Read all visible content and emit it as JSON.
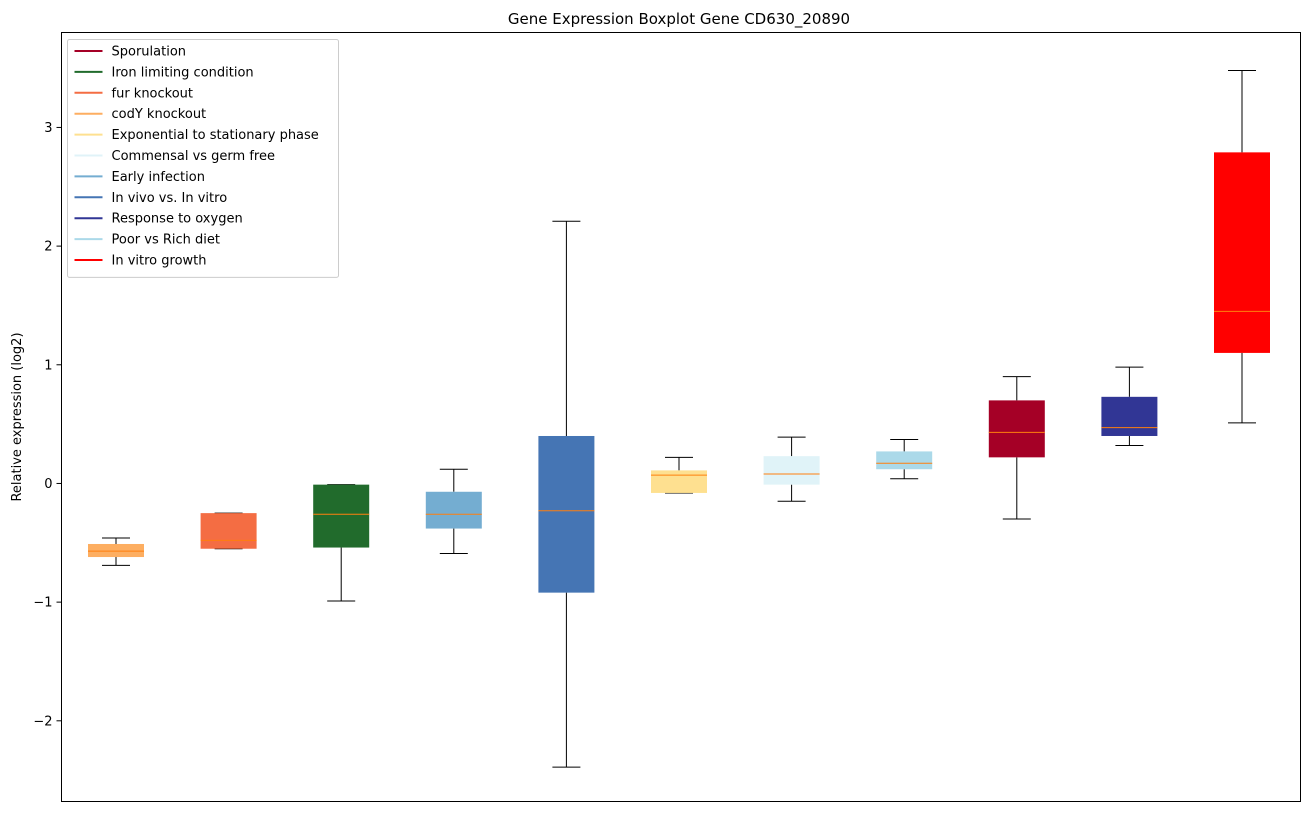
{
  "chart_data": {
    "type": "box",
    "title": "Gene Expression Boxplot Gene CD630_20890",
    "xlabel": "",
    "ylabel": "Relative expression (log2)",
    "ylim": [
      -2.68,
      3.8
    ],
    "yticks": [
      {
        "value": 3,
        "label": "3"
      },
      {
        "value": 2,
        "label": "2"
      },
      {
        "value": 1,
        "label": "1"
      },
      {
        "value": 0,
        "label": "0"
      },
      {
        "value": -1,
        "label": "−1"
      },
      {
        "value": -2,
        "label": "−2"
      }
    ],
    "median_color": "#ff7f0e",
    "legend": {
      "location": "upper-left",
      "entries": [
        {
          "label": "Sporulation",
          "color": "#a50026"
        },
        {
          "label": "Iron limiting condition",
          "color": "#216b2c"
        },
        {
          "label": "fur knockout",
          "color": "#f46d43"
        },
        {
          "label": "codY knockout",
          "color": "#fdae61"
        },
        {
          "label": "Exponential to stationary phase",
          "color": "#fee090"
        },
        {
          "label": "Commensal vs germ free",
          "color": "#e0f3f8"
        },
        {
          "label": "Early infection",
          "color": "#74add1"
        },
        {
          "label": "In vivo vs. In vitro",
          "color": "#4575b4"
        },
        {
          "label": "Response to oxygen",
          "color": "#313695"
        },
        {
          "label": "Poor vs Rich diet",
          "color": "#abd9e9"
        },
        {
          "label": "In vitro growth",
          "color": "#ff0000"
        }
      ]
    },
    "boxes": [
      {
        "condition": "codY knockout",
        "color": "#fdae61",
        "whisker_low": -0.69,
        "q1": -0.62,
        "median": -0.57,
        "q3": -0.51,
        "whisker_high": -0.46
      },
      {
        "condition": "fur knockout",
        "color": "#f46d43",
        "whisker_low": -0.55,
        "q1": -0.55,
        "median": -0.48,
        "q3": -0.25,
        "whisker_high": -0.25
      },
      {
        "condition": "Iron limiting condition",
        "color": "#216b2c",
        "whisker_low": -0.99,
        "q1": -0.54,
        "median": -0.26,
        "q3": -0.01,
        "whisker_high": -0.01
      },
      {
        "condition": "Early infection",
        "color": "#74add1",
        "whisker_low": -0.59,
        "q1": -0.38,
        "median": -0.26,
        "q3": -0.07,
        "whisker_high": 0.12
      },
      {
        "condition": "In vivo vs. In vitro",
        "color": "#4575b4",
        "whisker_low": -2.39,
        "q1": -0.92,
        "median": -0.23,
        "q3": 0.4,
        "whisker_high": 2.21
      },
      {
        "condition": "Exponential to stationary phase",
        "color": "#fee090",
        "whisker_low": -0.08,
        "q1": -0.08,
        "median": 0.07,
        "q3": 0.11,
        "whisker_high": 0.22
      },
      {
        "condition": "Commensal vs germ free",
        "color": "#e0f3f8",
        "whisker_low": -0.15,
        "q1": -0.01,
        "median": 0.08,
        "q3": 0.23,
        "whisker_high": 0.39
      },
      {
        "condition": "Poor vs Rich diet",
        "color": "#abd9e9",
        "whisker_low": 0.04,
        "q1": 0.12,
        "median": 0.17,
        "q3": 0.27,
        "whisker_high": 0.37
      },
      {
        "condition": "Sporulation",
        "color": "#a50026",
        "whisker_low": -0.3,
        "q1": 0.22,
        "median": 0.43,
        "q3": 0.7,
        "whisker_high": 0.9
      },
      {
        "condition": "Response to oxygen",
        "color": "#313695",
        "whisker_low": 0.32,
        "q1": 0.4,
        "median": 0.47,
        "q3": 0.73,
        "whisker_high": 0.98
      },
      {
        "condition": "In vitro growth",
        "color": "#ff0000",
        "whisker_low": 0.51,
        "q1": 1.1,
        "median": 1.45,
        "q3": 2.79,
        "whisker_high": 3.48
      }
    ]
  }
}
